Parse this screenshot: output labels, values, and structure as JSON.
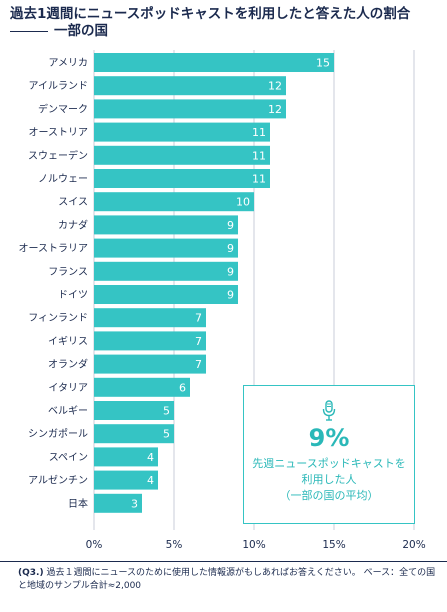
{
  "title_line1": "過去1週間にニュースポッドキャストを利用したと答えた人の割合",
  "title_line2": "一部の国",
  "chart_data": {
    "type": "bar",
    "orientation": "horizontal",
    "categories": [
      "アメリカ",
      "アイルランド",
      "デンマーク",
      "オーストリア",
      "スウェーデン",
      "ノルウェー",
      "スイス",
      "カナダ",
      "オーストラリア",
      "フランス",
      "ドイツ",
      "フィンランド",
      "イギリス",
      "オランダ",
      "イタリア",
      "ベルギー",
      "シンガポール",
      "スペイン",
      "アルゼンチン",
      "日本"
    ],
    "values": [
      15,
      12,
      12,
      11,
      11,
      11,
      10,
      9,
      9,
      9,
      9,
      7,
      7,
      7,
      6,
      5,
      5,
      4,
      4,
      3
    ],
    "value_labels": [
      "15",
      "12",
      "12",
      "11",
      "11",
      "11",
      "10",
      "9",
      "9",
      "9",
      "9",
      "7",
      "7",
      "7",
      "6",
      "5",
      "5",
      "4",
      "4",
      "3"
    ],
    "xlim": [
      0,
      20
    ],
    "x_ticks": [
      0,
      5,
      10,
      15,
      20
    ],
    "x_tick_labels": [
      "0%",
      "5%",
      "10%",
      "15%",
      "20%"
    ],
    "grid": true,
    "bar_color": "#35c4c4"
  },
  "callout": {
    "icon": "microphone-icon",
    "value": "9%",
    "line1": "先週ニュースポッドキャストを",
    "line2": "利用した人",
    "line3": "（一部の国の平均）"
  },
  "footnote": {
    "q_label": "(Q3.)",
    "question": "過去１週間にニュースのために使用した情報源がもしあればお答えください。",
    "base": "ベース：全ての国と地域のサンプル合計≈2,000"
  }
}
